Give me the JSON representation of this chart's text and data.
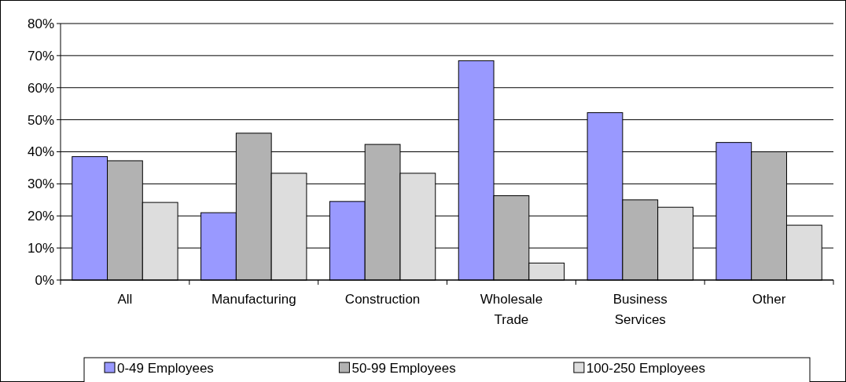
{
  "chart_data": {
    "type": "bar",
    "categories": [
      "All",
      "Manufacturing",
      "Construction",
      "Wholesale Trade",
      "Business Services",
      "Other"
    ],
    "series": [
      {
        "name": "0-49 Employees",
        "color": "#9999ff",
        "values": [
          38.5,
          21,
          24.5,
          68.4,
          52.2,
          42.9
        ]
      },
      {
        "name": "50-99 Employees",
        "color": "#b2b2b2",
        "values": [
          37.2,
          45.8,
          42.3,
          26.3,
          25,
          40
        ]
      },
      {
        "name": "100-250 Employees",
        "color": "#dddddd",
        "values": [
          24.2,
          33.3,
          33.3,
          5.3,
          22.7,
          17.1
        ]
      }
    ],
    "ylim": [
      0,
      80
    ],
    "yticks": [
      {
        "value": 0,
        "label": "0%"
      },
      {
        "value": 10,
        "label": "10%"
      },
      {
        "value": 20,
        "label": "20%"
      },
      {
        "value": 30,
        "label": "30%"
      },
      {
        "value": 40,
        "label": "40%"
      },
      {
        "value": 50,
        "label": "50%"
      },
      {
        "value": 60,
        "label": "60%"
      },
      {
        "value": 70,
        "label": "70%"
      },
      {
        "value": 80,
        "label": "80%"
      }
    ],
    "grid": "y",
    "legend": "bottom"
  }
}
